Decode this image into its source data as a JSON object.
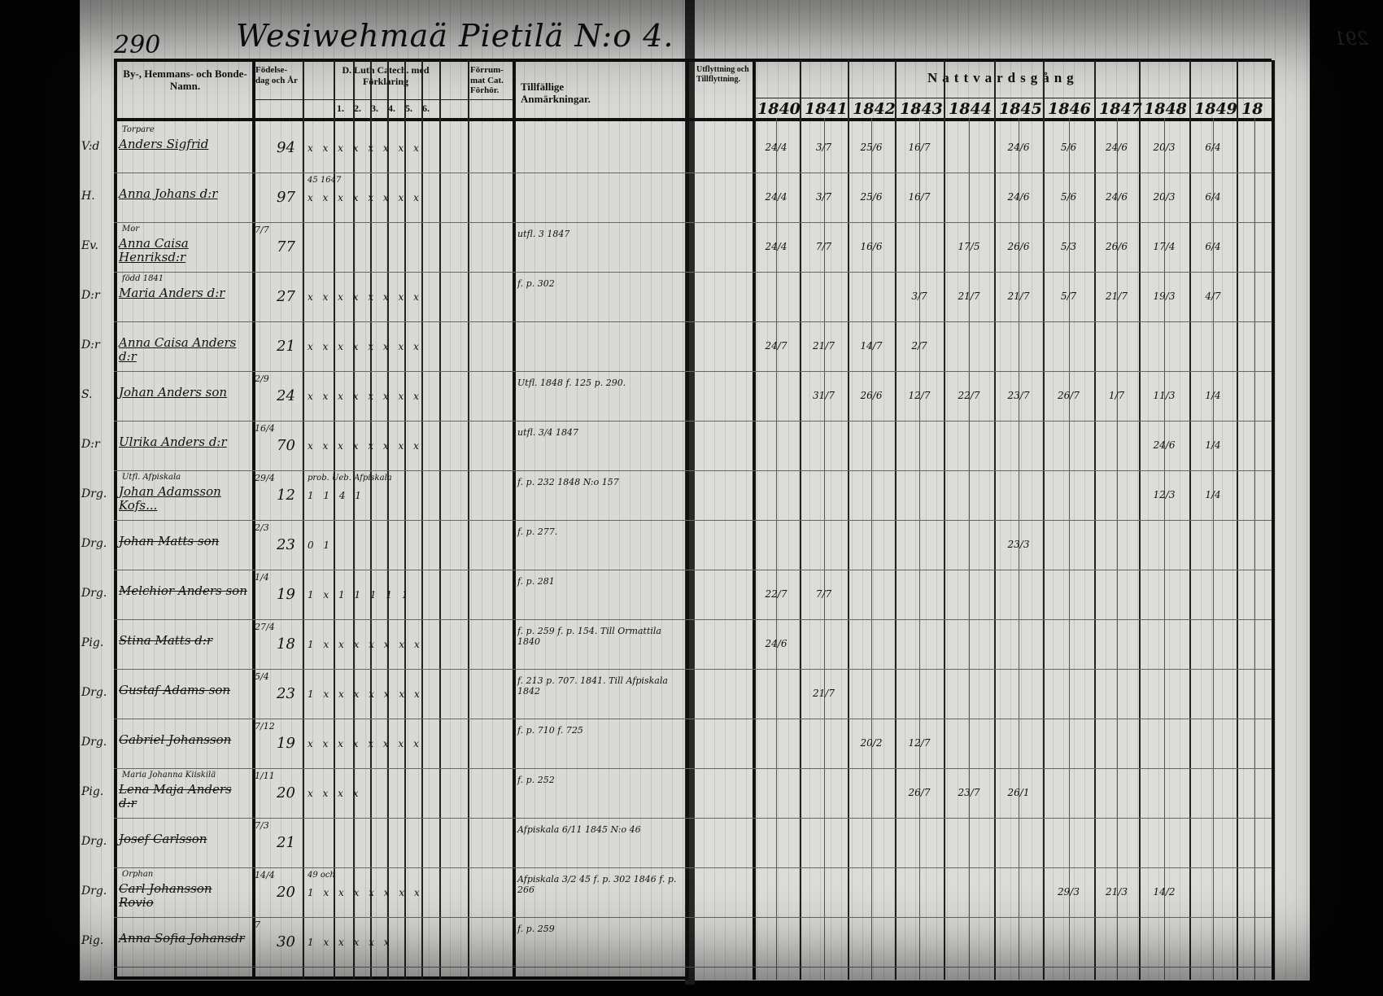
{
  "left_page": {
    "page_number": "290",
    "title": "Wesiwehmaä Pietilä N:o 4.",
    "headers": {
      "names": "By-, Hemmans- och Bonde-Namn.",
      "birth": "Födelse-dag och År",
      "reading": "D. Luth Catech. med Förklaring",
      "reading_cols": [
        "1.",
        "2.",
        "3.",
        "4.",
        "5.",
        "6."
      ],
      "communicant": "Förrum-mat Cat. Förhör.",
      "notes": "Tillfällige Anmärkningar.",
      "moves": "Utflyttning och Tillflyttning."
    },
    "rows": [
      {
        "title": "V:d",
        "name": "Anders Sigfrid",
        "birth_day": "",
        "birth_year": "94",
        "marks": "x x x x x x x x",
        "note": "",
        "annot": "Torpare"
      },
      {
        "title": "H.",
        "name": "Anna Johans d:r",
        "birth_day": "",
        "birth_year": "97",
        "marks": "x x x x x x x x",
        "note": "",
        "annot": "",
        "extra": "45 1647"
      },
      {
        "title": "Ev.",
        "name": "Anna Caisa Henriksd:r",
        "birth_day": "7/7",
        "birth_year": "77",
        "marks": "",
        "note": "utfl. 3 1847",
        "annot": "Mor"
      },
      {
        "title": "D:r",
        "name": "Maria Anders d:r",
        "birth_day": "",
        "birth_year": "27",
        "marks": "x x x x x x x x",
        "note": "f. p. 302",
        "annot": "född 1841"
      },
      {
        "title": "D:r",
        "name": "Anna Caisa Anders d:r",
        "birth_day": "",
        "birth_year": "21",
        "marks": "x x x x x x x x",
        "note": "",
        "annot": ""
      },
      {
        "title": "S.",
        "name": "Johan Anders son",
        "birth_day": "2/9",
        "birth_year": "24",
        "marks": "x x x x x x x x",
        "note": "Utfl. 1848 f. 125 p. 290.",
        "annot": ""
      },
      {
        "title": "D:r",
        "name": "Ulrika Anders d:r",
        "birth_day": "16/4",
        "birth_year": "70",
        "marks": "x x x x x x x x",
        "note": "utfl. 3/4 1847",
        "annot": ""
      },
      {
        "title": "Drg.",
        "name": "Johan Adamsson Kofs...",
        "birth_day": "29/4",
        "birth_year": "12",
        "marks": "1 1 4 1",
        "note": "f. p. 232 1848  N:o 157",
        "annot": "Utfl. Afpiskala",
        "extra": "prob. Ueb. Afpiskala"
      },
      {
        "title": "Drg.",
        "name": "Johan Matts son",
        "birth_day": "2/3",
        "birth_year": "23",
        "marks": "0 1",
        "note": "f. p. 277.",
        "annot": ""
      },
      {
        "title": "Drg.",
        "name": "Melchior Anders son",
        "birth_day": "1/4",
        "birth_year": "19",
        "marks": "1 x 1 1 1 1 1",
        "note": "f. p. 281",
        "annot": ""
      },
      {
        "title": "Pig.",
        "name": "Stina Matts d:r",
        "birth_day": "27/4",
        "birth_year": "18",
        "marks": "1 x x x x x x x",
        "note": "f. p. 259  f. p. 154. Till Ormattila 1840",
        "annot": ""
      },
      {
        "title": "Drg.",
        "name": "Gustaf Adams son",
        "birth_day": "5/4",
        "birth_year": "23",
        "marks": "1 x x x x x x x",
        "note": "f. 213 p. 707. 1841.  Till Afpiskala 1842",
        "annot": ""
      },
      {
        "title": "Drg.",
        "name": "Gabriel Johansson",
        "birth_day": "7/12",
        "birth_year": "19",
        "marks": "x x x x x x x x",
        "note": "f. p. 710  f. 725",
        "annot": ""
      },
      {
        "title": "Pig.",
        "name": "Lena Maja Anders d:r",
        "birth_day": "1/11",
        "birth_year": "20",
        "marks": "x x x x",
        "note": "f. p. 252",
        "annot": "Maria Johanna Kiiskilä"
      },
      {
        "title": "Drg.",
        "name": "Josef Carlsson",
        "birth_day": "7/3",
        "birth_year": "21",
        "marks": "",
        "note": "Afpiskala 6/11 1845 N:o 46",
        "annot": ""
      },
      {
        "title": "Drg.",
        "name": "Carl Johansson Rovio",
        "birth_day": "14/4",
        "birth_year": "20",
        "marks": "1 x x x x x x x",
        "note": "Afpiskala 3/2 45  f. p. 302 1846  f. p. 266",
        "annot": "Orphan",
        "extra": "49 och"
      },
      {
        "title": "Pig.",
        "name": "Anna Sofia Johansdr",
        "birth_day": "7",
        "birth_year": "30",
        "marks": "1 x x x x x",
        "note": "f. p. 259",
        "annot": ""
      }
    ]
  },
  "right_page": {
    "page_number": "291",
    "heading": "Nattvardsgång",
    "years": [
      "1840",
      "1841",
      "1842",
      "1843",
      "1844",
      "1845",
      "1846",
      "1847",
      "1848",
      "1849",
      "18"
    ],
    "communion": [
      [
        "24/4",
        "3/7",
        "25/6",
        "16/7",
        "",
        "24/6",
        "5/6",
        "24/6",
        "20/3",
        "6/4"
      ],
      [
        "24/4",
        "3/7",
        "25/6",
        "16/7",
        "",
        "24/6",
        "5/6",
        "24/6",
        "20/3",
        "6/4"
      ],
      [
        "24/4",
        "7/7",
        "16/6",
        "",
        "17/5",
        "26/6",
        "5/3",
        "26/6",
        "17/4",
        "6/4"
      ],
      [
        "",
        "",
        "",
        "3/7",
        "21/7",
        "21/7",
        "5/7",
        "21/7",
        "19/3",
        "4/7"
      ],
      [
        "24/7",
        "21/7",
        "14/7",
        "2/7",
        "",
        "",
        "",
        "",
        "",
        ""
      ],
      [
        "",
        "31/7",
        "26/6",
        "12/7",
        "22/7",
        "23/7",
        "26/7",
        "1/7",
        "11/3",
        "1/4"
      ],
      [
        "",
        "",
        "",
        "",
        "",
        "",
        "",
        "",
        "24/6",
        "1/4"
      ],
      [
        "",
        "",
        "",
        "",
        "",
        "",
        "",
        "",
        "12/3",
        "1/4"
      ],
      [
        "",
        "",
        "",
        "",
        "",
        "23/3",
        "",
        "",
        "",
        ""
      ],
      [
        "22/7",
        "7/7",
        "",
        "",
        "",
        "",
        "",
        "",
        "",
        ""
      ],
      [
        "24/6",
        "",
        "",
        "",
        "",
        "",
        "",
        "",
        "",
        ""
      ],
      [
        "",
        "21/7",
        "",
        "",
        "",
        "",
        "",
        "",
        "",
        ""
      ],
      [
        "",
        "",
        "20/2",
        "12/7",
        "",
        "",
        "",
        "",
        "",
        ""
      ],
      [
        "",
        "",
        "",
        "26/7",
        "23/7",
        "26/1",
        "",
        "",
        "",
        ""
      ],
      [
        "",
        "",
        "",
        "",
        "",
        "",
        "",
        "",
        "",
        ""
      ],
      [
        "",
        "",
        "",
        "",
        "",
        "",
        "29/3",
        "21/3",
        "14/2",
        ""
      ]
    ]
  }
}
